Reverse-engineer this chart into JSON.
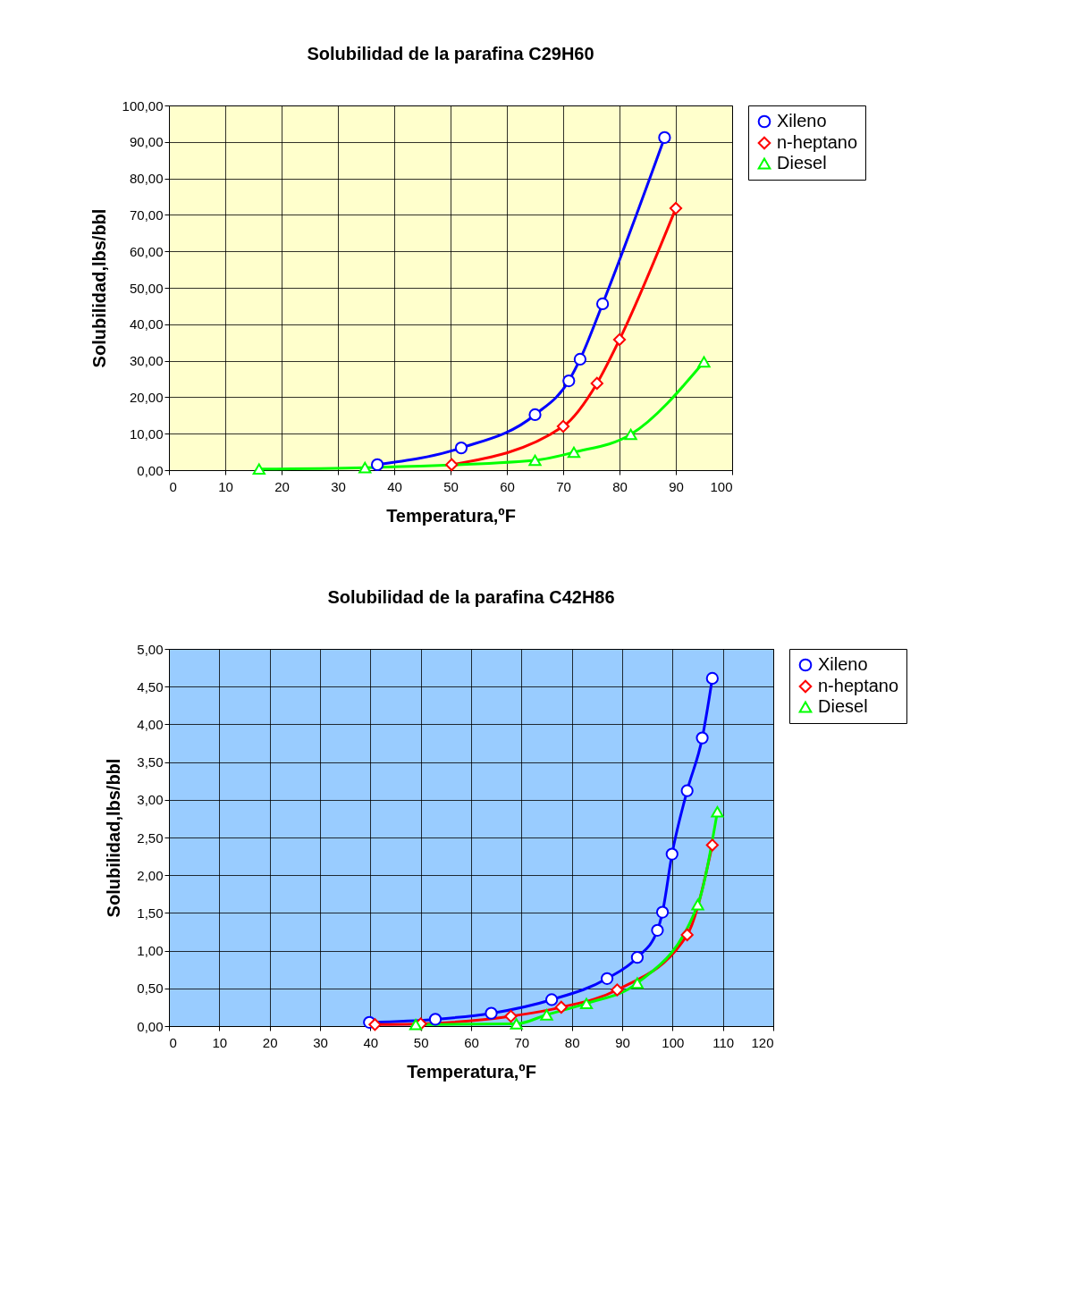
{
  "chart_data": [
    {
      "type": "line",
      "title": "Solubilidad de la parafina C29H60",
      "xlabel": "Temperatura,ºF",
      "ylabel": "Solubilidad,lbs/bbl",
      "xlim": [
        0,
        100
      ],
      "xticks": [
        0,
        10,
        20,
        30,
        40,
        50,
        60,
        70,
        80,
        90,
        100
      ],
      "line_style": "solid",
      "ylim": [
        0,
        100
      ],
      "yticks": [
        {
          "value": 0,
          "label": "0,00"
        },
        {
          "value": 10,
          "label": "10,00"
        },
        {
          "value": 20,
          "label": "20,00"
        },
        {
          "value": 30,
          "label": "30,00"
        },
        {
          "value": 40,
          "label": "40,00"
        },
        {
          "value": 50,
          "label": "50,00"
        },
        {
          "value": 60,
          "label": "60,00"
        },
        {
          "value": 70,
          "label": "70,00"
        },
        {
          "value": 80,
          "label": "80,00"
        },
        {
          "value": 90,
          "label": "90,00"
        },
        {
          "value": 100,
          "label": "100,00"
        }
      ],
      "grid": true,
      "legend": "right",
      "series": [
        {
          "name": "Xileno",
          "color": "#0000ff",
          "marker": "circle",
          "x": [
            37,
            51.9,
            65,
            71,
            73,
            77,
            88
          ],
          "values": [
            1.5,
            6.1,
            15.2,
            24.5,
            30.4,
            45.6,
            91.2
          ]
        },
        {
          "name": "n-heptano",
          "color": "#ff0000",
          "marker": "diamond",
          "x": [
            50.2,
            70,
            76,
            80,
            90
          ],
          "values": [
            1.5,
            12,
            23.8,
            35.8,
            71.8
          ]
        },
        {
          "name": "Diesel",
          "color": "#00ff00",
          "marker": "triangle",
          "x": [
            16,
            34.8,
            65,
            71.9,
            82,
            95
          ],
          "values": [
            0.3,
            0.7,
            2.7,
            4.9,
            9.8,
            29.7
          ]
        }
      ]
    },
    {
      "type": "line",
      "title": "Solubilidad de la parafina C42H86",
      "xlabel": "Temperatura,ºF",
      "ylabel": "Solubilidad,lbs/bbl",
      "xlim": [
        0,
        120
      ],
      "xticks": [
        0,
        10,
        20,
        30,
        40,
        50,
        60,
        70,
        80,
        90,
        100,
        110,
        120
      ],
      "line_style": "solid",
      "ylim": [
        0,
        5
      ],
      "yticks": [
        {
          "value": 0,
          "label": "0,00"
        },
        {
          "value": 0.5,
          "label": "0,50"
        },
        {
          "value": 1,
          "label": "1,00"
        },
        {
          "value": 1.5,
          "label": "1,50"
        },
        {
          "value": 2,
          "label": "2,00"
        },
        {
          "value": 2.5,
          "label": "2,50"
        },
        {
          "value": 3,
          "label": "3,00"
        },
        {
          "value": 3.5,
          "label": "3,50"
        },
        {
          "value": 4,
          "label": "4,00"
        },
        {
          "value": 4.5,
          "label": "4,50"
        },
        {
          "value": 5,
          "label": "5,00"
        }
      ],
      "grid": true,
      "legend": "right",
      "series": [
        {
          "name": "Xileno",
          "color": "#0000ff",
          "marker": "circle",
          "x": [
            39.8,
            52.9,
            64,
            76,
            87,
            93,
            97,
            98,
            99.9,
            102.9,
            105.9,
            107.9
          ],
          "values": [
            0.05,
            0.09,
            0.17,
            0.35,
            0.63,
            0.91,
            1.27,
            1.51,
            2.28,
            3.12,
            3.82,
            4.61
          ]
        },
        {
          "name": "n-heptano",
          "color": "#ff0000",
          "marker": "diamond",
          "x": [
            40.9,
            50,
            67.9,
            77.9,
            89,
            102.9,
            107.9
          ],
          "values": [
            0.02,
            0.03,
            0.13,
            0.25,
            0.48,
            1.21,
            2.4
          ]
        },
        {
          "name": "Diesel",
          "color": "#00ff00",
          "marker": "triangle",
          "x": [
            49,
            69,
            75,
            82.9,
            93,
            105,
            108.9
          ],
          "values": [
            0.02,
            0.03,
            0.15,
            0.3,
            0.57,
            1.61,
            2.84
          ]
        }
      ]
    }
  ]
}
